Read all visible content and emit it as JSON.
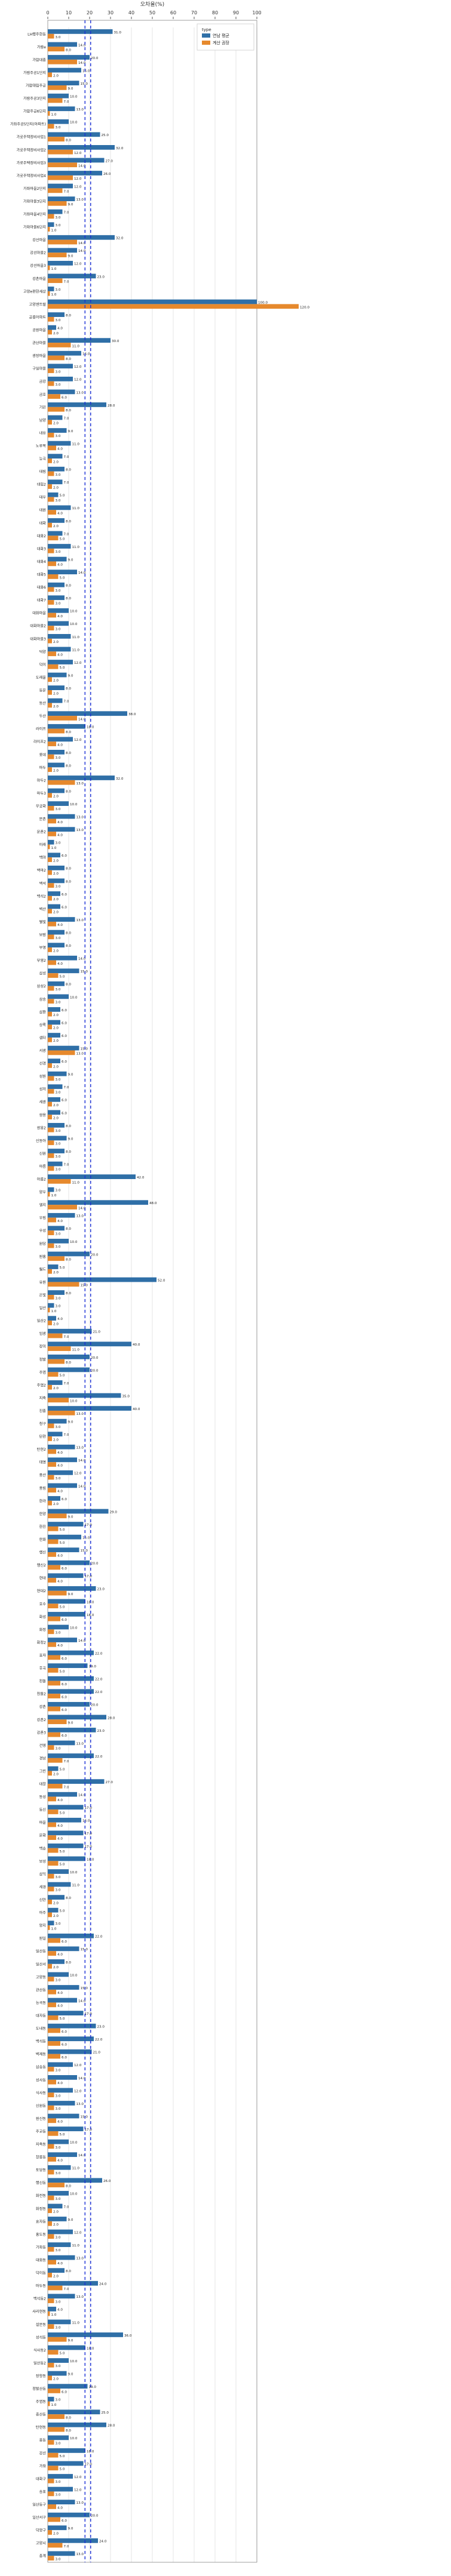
{
  "chart_data": {
    "type": "bar",
    "orientation": "horizontal",
    "title": "",
    "xlabel": "오차율(%)",
    "ylabel": "",
    "xlim": [
      0,
      100
    ],
    "xticks": [
      0,
      10,
      20,
      30,
      40,
      50,
      60,
      70,
      80,
      90,
      100
    ],
    "grid": true,
    "reference_lines": [
      17.8,
      20.5
    ],
    "legend": {
      "title": "type",
      "placement": "top-right"
    },
    "series": [
      {
        "name": "연남 평균",
        "color": "#2f6fa7"
      },
      {
        "name": "계산 권장",
        "color": "#e6892d"
      }
    ],
    "categories": [
      "LH행주한동",
      "가람e",
      "가람대흥",
      "가람주공1단지",
      "가람태림주공",
      "가람주공3단지",
      "가람주공6단지",
      "가람주공7단지",
      "가로주택정비사업1",
      "가로주택정비사업2",
      "가로주택정비사업3",
      "가로주택정비사업4",
      "가로주택정비사업5",
      "가좌1지구",
      "가좌대림",
      "가좌마을",
      "가좌벽산",
      "가좌한신",
      "가좌현대",
      "가좌마을1단지",
      "가좌마을2단지",
      "가좌마을3단지",
      "가좌마을4단지",
      "가좌마을5단지",
      "가좌마을6단지",
      "강변마을",
      "강선마을",
      "개나리",
      "건영",
      "경기빌라",
      "경남",
      "경남아너스빌",
      "경동",
      "고봉마을",
      "고양가좌",
      "고양관산",
      "고양내유",
      "고양대자",
      "고양덕이",
      "고양백석",
      "고양삼송",
      "고양성사",
      "고양식사",
      "고양신원",
      "고양원당",
      "고양일산",
      "고양주엽",
      "고양지축",
      "고양탄현",
      "고양풍산",
      "고양행신",
      "고양화정",
      "고양효자",
      "관산마을",
      "광명",
      "구산",
      "구일",
      "금강",
      "금호",
      "기린",
      "남양",
      "내유",
      "노루목",
      "능곡",
      "대림",
      "대우",
      "대원",
      "대화",
      "덕양",
      "덕이",
      "도래울",
      "동문",
      "동산",
      "두산",
      "라이프",
      "롯데",
      "무궁화",
      "문촌",
      "미래",
      "백마",
      "백석",
      "벽산",
      "별빛",
      "보람",
      "부영",
      "삼성",
      "삼환",
      "상록",
      "샘터",
      "서광",
      "선경",
      "성원",
      "성저",
      "세광",
      "쌍용",
      "신동아",
      "신원",
      "아름",
      "양우",
      "엘지",
      "우림",
      "우성",
      "원흥",
      "월드",
      "유원",
      "은빛",
      "일산",
      "임광",
      "장미",
      "정발",
      "주엽",
      "지축",
      "진흥",
      "청구",
      "탄현",
      "태영",
      "풍산",
      "풍림",
      "한라",
      "한양",
      "한진",
      "한화",
      "행신",
      "현대",
      "호수",
      "화성",
      "화정",
      "효자",
      "후곡",
      "흰돌",
      "강촌",
      "강촌2",
      "강촌3",
      "건영2",
      "경남2",
      "경남3",
      "그린",
      "대림2",
      "대우2",
      "대원2",
      "대창",
      "동성",
      "동신",
      "두산2",
      "라이프2",
      "롯데2",
      "마을",
      "문화",
      "미래2",
      "백송",
      "벽산2",
      "보성",
      "부영2",
      "삼익",
      "삼환2",
      "상록2",
      "샘터2",
      "서광2",
      "선경2",
      "성원2",
      "세경",
      "쌍용2",
      "신동아2",
      "신안",
      "아주",
      "양지",
      "엘지2",
      "우림2",
      "우성2",
      "원일",
      "월드2",
      "유원2",
      "은빛2",
      "일산2",
      "임광2",
      "장미2",
      "정발2",
      "주엽2",
      "지축2",
      "진흥2",
      "청구2",
      "탄현2",
      "태영2",
      "풍산2",
      "풍림2",
      "한라2",
      "한양2",
      "한진2",
      "한화2",
      "행신2",
      "현대2",
      "호수2",
      "화성2",
      "화정2",
      "효자2",
      "후곡2",
      "흰돌2",
      "일산동구",
      "일산서구",
      "덕양구",
      "고양시",
      "총계",
      "종합",
      "기타"
    ],
    "values_blue": [],
    "values_orange": []
  }
}
